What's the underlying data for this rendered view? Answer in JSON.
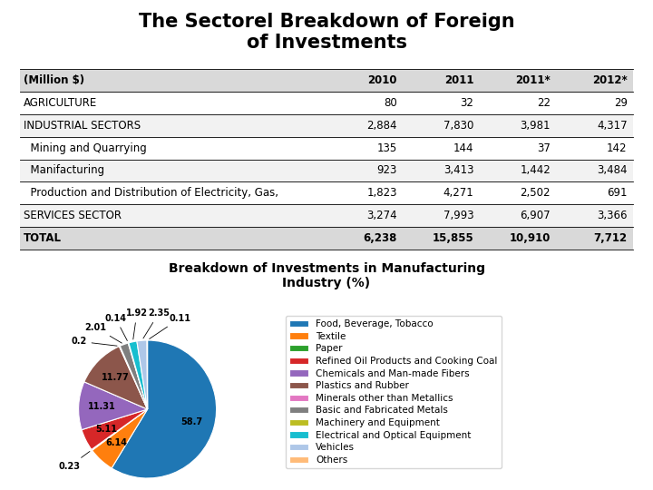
{
  "chart_data": [
    {
      "type": "table",
      "title": "The Sectorel Breakdown of Foreign\nof Investments",
      "ylabel": "(Million $)",
      "categories": [
        "AGRICULTURE",
        "INDUSTRIAL SECTORS",
        "  Mining and Quarrying",
        "  Manifacturing",
        "  Production and Distribution of Electricity, Gas,",
        "SERVICES SECTOR",
        "TOTAL"
      ],
      "series": [
        {
          "name": "2010",
          "values": [
            80,
            2884,
            135,
            923,
            1823,
            3274,
            6238
          ],
          "value_labels": [
            "80",
            "2,884",
            "135",
            "923",
            "1,823",
            "3,274",
            "6,238"
          ]
        },
        {
          "name": "2011",
          "values": [
            32,
            7830,
            144,
            3413,
            4271,
            7993,
            15855
          ],
          "value_labels": [
            "32",
            "7,830",
            "144",
            "3,413",
            "4,271",
            "7,993",
            "15,855"
          ]
        },
        {
          "name": "2011*",
          "values": [
            22,
            3981,
            37,
            1442,
            2502,
            6907,
            10910
          ],
          "value_labels": [
            "22",
            "3,981",
            "37",
            "1,442",
            "2,502",
            "6,907",
            "10,910"
          ]
        },
        {
          "name": "2012*",
          "values": [
            29,
            4317,
            142,
            3484,
            691,
            3366,
            7712
          ],
          "value_labels": [
            "29",
            "4,317",
            "142",
            "3,484",
            "691",
            "3,366",
            "7,712"
          ]
        }
      ]
    },
    {
      "type": "pie",
      "title": "Breakdown of Investments in Manufacturing\nIndustry (%)",
      "categories": [
        "Food, Beverage, Tobacco",
        "Textile",
        "Paper",
        "Refined Oil Products and Cooking Coal",
        "Chemicals and Man-made Fibers",
        "Plastics and Rubber",
        "Minerals other than Metallics",
        "Basic and Fabricated Metals",
        "Machinery and Equipment",
        "Electrical and Optical Equipment",
        "Vehicles",
        "Others"
      ],
      "values": [
        58.7,
        6.14,
        0.23,
        5.11,
        11.31,
        11.77,
        0.2,
        2.01,
        0.14,
        1.92,
        2.35,
        0.11
      ],
      "colors": [
        "#1f77b4",
        "#ff7f0e",
        "#2ca02c",
        "#d62728",
        "#9467bd",
        "#8c564b",
        "#e377c2",
        "#7f7f7f",
        "#bcbd22",
        "#17becf",
        "#aec7e8",
        "#ffbb78"
      ],
      "data_labels": true,
      "legend": "center left"
    }
  ]
}
